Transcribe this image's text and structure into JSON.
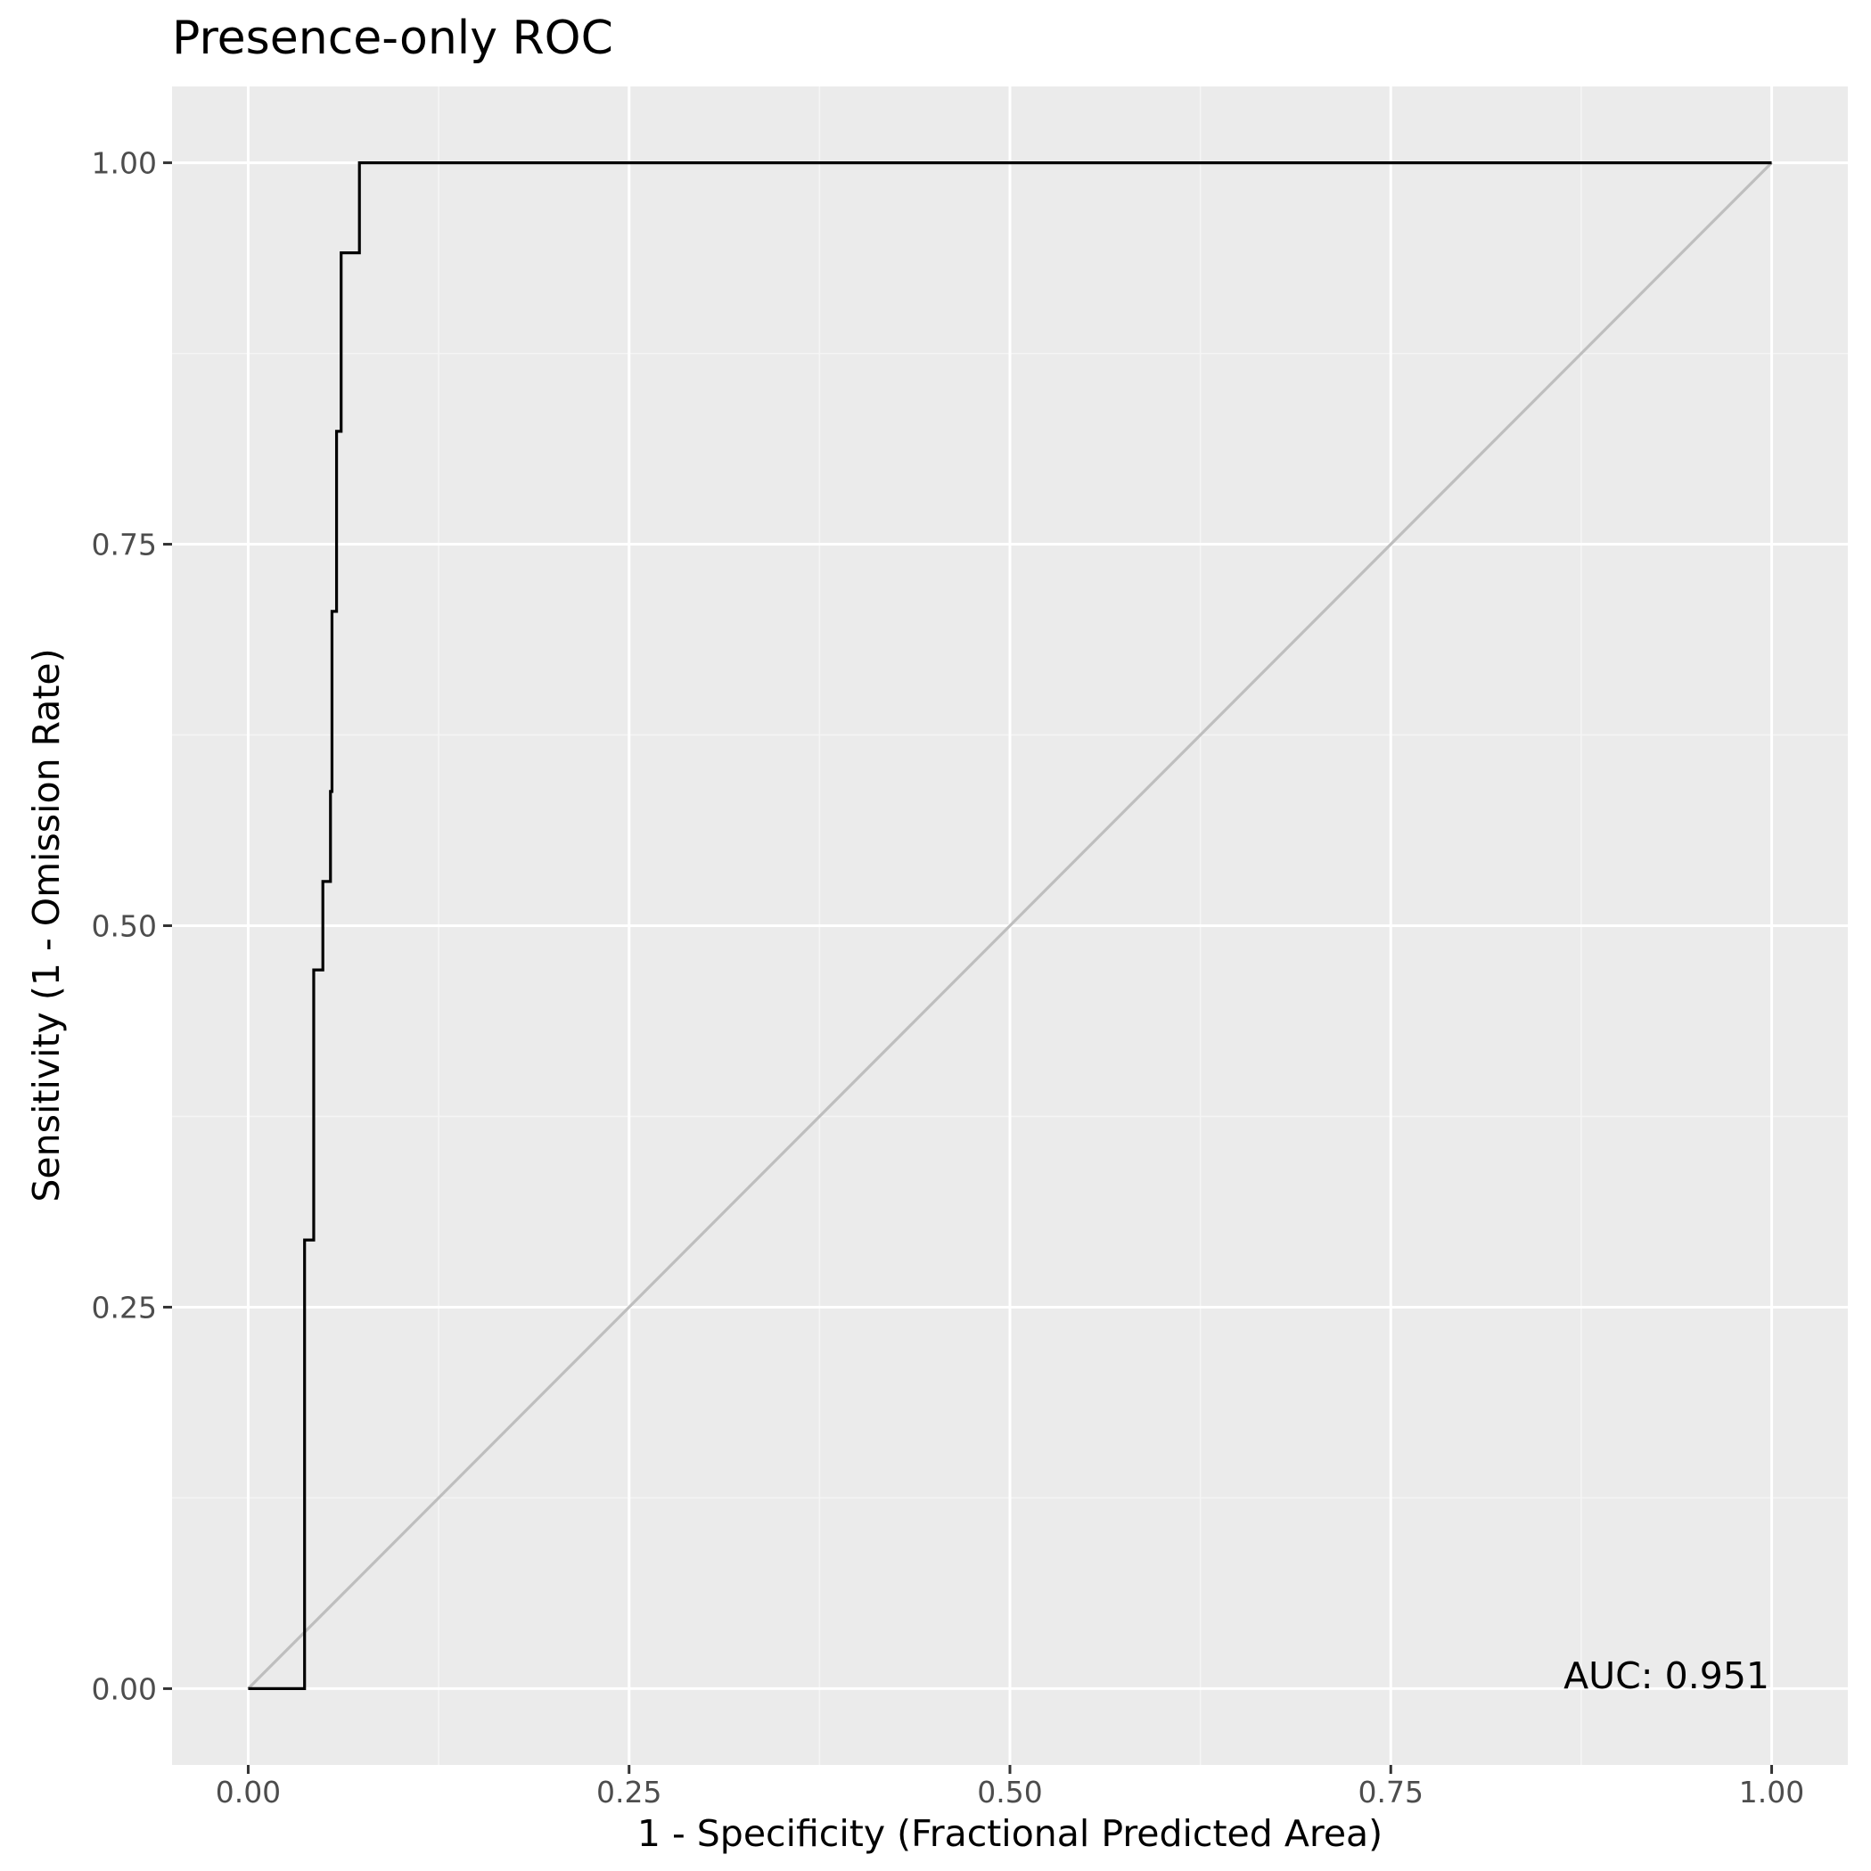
{
  "chart_data": {
    "type": "line",
    "title": "Presence-only ROC",
    "xlabel": "1 - Specificity (Fractional Predicted Area)",
    "ylabel": "Sensitivity (1 - Omission Rate)",
    "xlim": [
      -0.05,
      1.05
    ],
    "ylim": [
      -0.05,
      1.05
    ],
    "x_ticks": [
      0,
      0.25,
      0.5,
      0.75,
      1
    ],
    "y_ticks": [
      0,
      0.25,
      0.5,
      0.75,
      1
    ],
    "x_tick_labels": [
      "0.00",
      "0.25",
      "0.50",
      "0.75",
      "1.00"
    ],
    "y_tick_labels": [
      "0.00",
      "0.25",
      "0.50",
      "0.75",
      "1.00"
    ],
    "grid": true,
    "annotation": "AUC: 0.951",
    "series": [
      {
        "color": "#000000",
        "step": true,
        "x": [
          0.0,
          0.037,
          0.037,
          0.037,
          0.043,
          0.043,
          0.049,
          0.049,
          0.054,
          0.054,
          0.055,
          0.055,
          0.058,
          0.058,
          0.061,
          0.061,
          0.073,
          0.073,
          1.0
        ],
        "y": [
          0.0,
          0.0,
          0.059,
          0.294,
          0.294,
          0.471,
          0.471,
          0.529,
          0.529,
          0.588,
          0.588,
          0.706,
          0.706,
          0.824,
          0.824,
          0.941,
          0.941,
          1.0,
          1.0
        ]
      },
      {
        "color": "#bebebe",
        "x": [
          0,
          1
        ],
        "y": [
          0,
          1
        ]
      }
    ]
  },
  "colors": {
    "panel_background": "#ebebeb",
    "grid_major": "#ffffff",
    "grid_minor": "#f5f5f5",
    "tick_label": "#4d4d4d",
    "tick_mark": "#333333"
  }
}
